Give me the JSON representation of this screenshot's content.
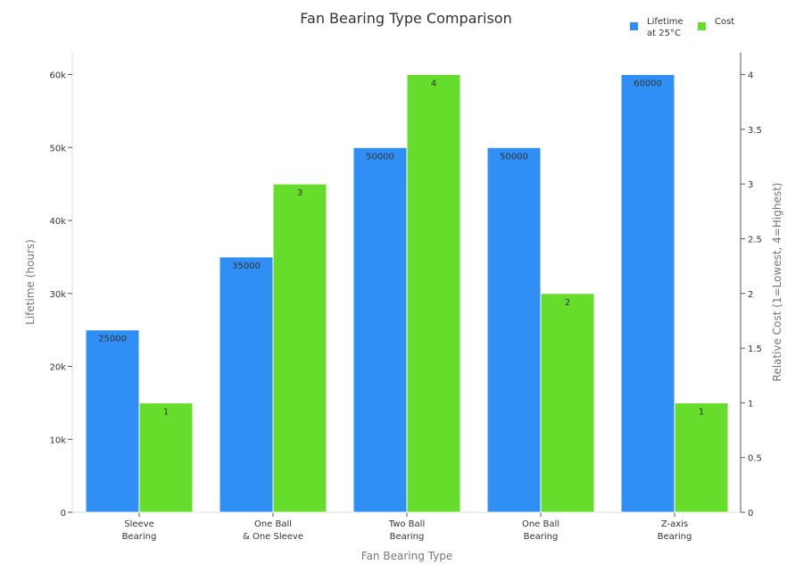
{
  "chart_data": {
    "type": "bar",
    "title": "Fan Bearing Type Comparison",
    "xlabel": "Fan Bearing Type",
    "ylabel": "Lifetime (hours)",
    "ylabel_right": "Relative Cost (1=Lowest, 4=Highest)",
    "categories": [
      [
        "Sleeve",
        "Bearing"
      ],
      [
        "One Ball",
        "& One Sleeve"
      ],
      [
        "Two Ball",
        "Bearing"
      ],
      [
        "One Ball",
        "Bearing"
      ],
      [
        "Z-axis",
        "Bearing"
      ]
    ],
    "series": [
      {
        "name": [
          "Lifetime",
          "at 25°C"
        ],
        "axis": "left",
        "color": "#2f8ff5",
        "values": [
          25000,
          35000,
          50000,
          50000,
          60000
        ]
      },
      {
        "name": [
          "Cost"
        ],
        "axis": "right",
        "color": "#66dd2a",
        "values": [
          1,
          3,
          4,
          2,
          1
        ]
      }
    ],
    "ylim": [
      0,
      63000
    ],
    "yticks": [
      0,
      10000,
      20000,
      30000,
      40000,
      50000,
      60000
    ],
    "ytick_labels": [
      "0",
      "10k",
      "20k",
      "30k",
      "40k",
      "50k",
      "60k"
    ],
    "ylim_right": [
      0,
      4.2
    ],
    "yticks_right": [
      0,
      0.5,
      1,
      1.5,
      2,
      2.5,
      3,
      3.5,
      4
    ],
    "ytick_labels_right": [
      "0",
      "0.5",
      "1",
      "1.5",
      "2",
      "2.5",
      "3",
      "3.5",
      "4"
    ],
    "grid": false,
    "legend": "top-right"
  }
}
